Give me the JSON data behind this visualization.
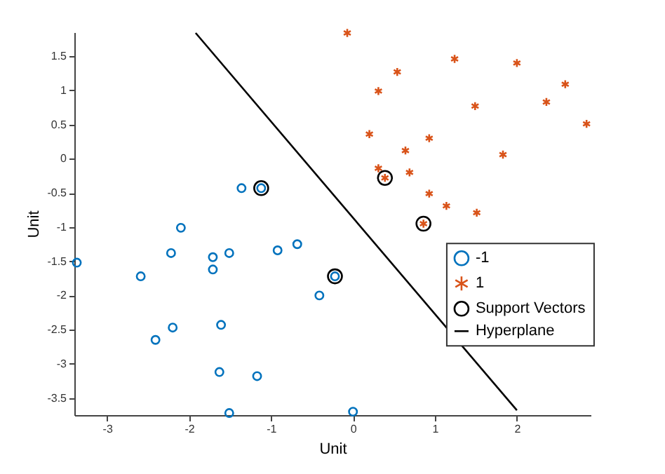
{
  "chart_data": {
    "type": "scatter",
    "xlabel": "Unit",
    "ylabel": "Unit",
    "xlim": [
      -3.4,
      2.9
    ],
    "ylim": [
      -3.75,
      1.85
    ],
    "xticks": [
      -3,
      -2,
      -1,
      0,
      1,
      2
    ],
    "yticks": [
      -3.5,
      -3,
      -2.5,
      -2,
      -1.5,
      -1,
      -0.5,
      0,
      0.5,
      1,
      1.5
    ],
    "grid": false,
    "legend": "right",
    "series": [
      {
        "name": "-1",
        "color": "#0072bd",
        "marker": "circle",
        "x": [
          -1.36,
          -1.12,
          -2.1,
          -3.37,
          -2.59,
          -2.22,
          -1.71,
          -1.51,
          -1.71,
          -0.92,
          -0.68,
          -0.22,
          -0.41,
          -2.2,
          -1.61,
          -2.41,
          -1.63,
          -1.17,
          -1.51,
          0
        ],
        "values": [
          -0.43,
          -0.43,
          -1.01,
          -1.52,
          -1.72,
          -1.38,
          -1.44,
          -1.38,
          -1.62,
          -1.34,
          -1.25,
          -1.72,
          -2.0,
          -2.47,
          -2.43,
          -2.65,
          -3.12,
          -3.18,
          -3.72,
          -3.7
        ]
      },
      {
        "name": "1",
        "color": "#d95319",
        "marker": "cross",
        "x": [
          -0.07,
          1.24,
          2.0,
          0.54,
          2.59,
          0.31,
          2.36,
          1.49,
          2.85,
          0.2,
          0.93,
          0.64,
          1.83,
          0.31,
          0.69,
          0.39,
          0.93,
          1.14,
          1.51,
          0.86
        ],
        "values": [
          1.84,
          1.46,
          1.4,
          1.27,
          1.09,
          0.99,
          0.83,
          0.77,
          0.51,
          0.36,
          0.3,
          0.12,
          0.06,
          -0.14,
          -0.2,
          -0.28,
          -0.51,
          -0.69,
          -0.79,
          -0.95
        ]
      },
      {
        "name": "Support Vectors",
        "color": "#000000",
        "marker": "circle",
        "x": [
          -1.12,
          -0.22,
          0.39,
          0.86
        ],
        "values": [
          -0.43,
          -1.72,
          -0.28,
          -0.95
        ]
      },
      {
        "name": "Hyperplane",
        "type": "line",
        "color": "#000000",
        "marker": "none",
        "x": [
          -1.92,
          2.0
        ],
        "values": [
          1.84,
          -3.68
        ]
      }
    ]
  }
}
